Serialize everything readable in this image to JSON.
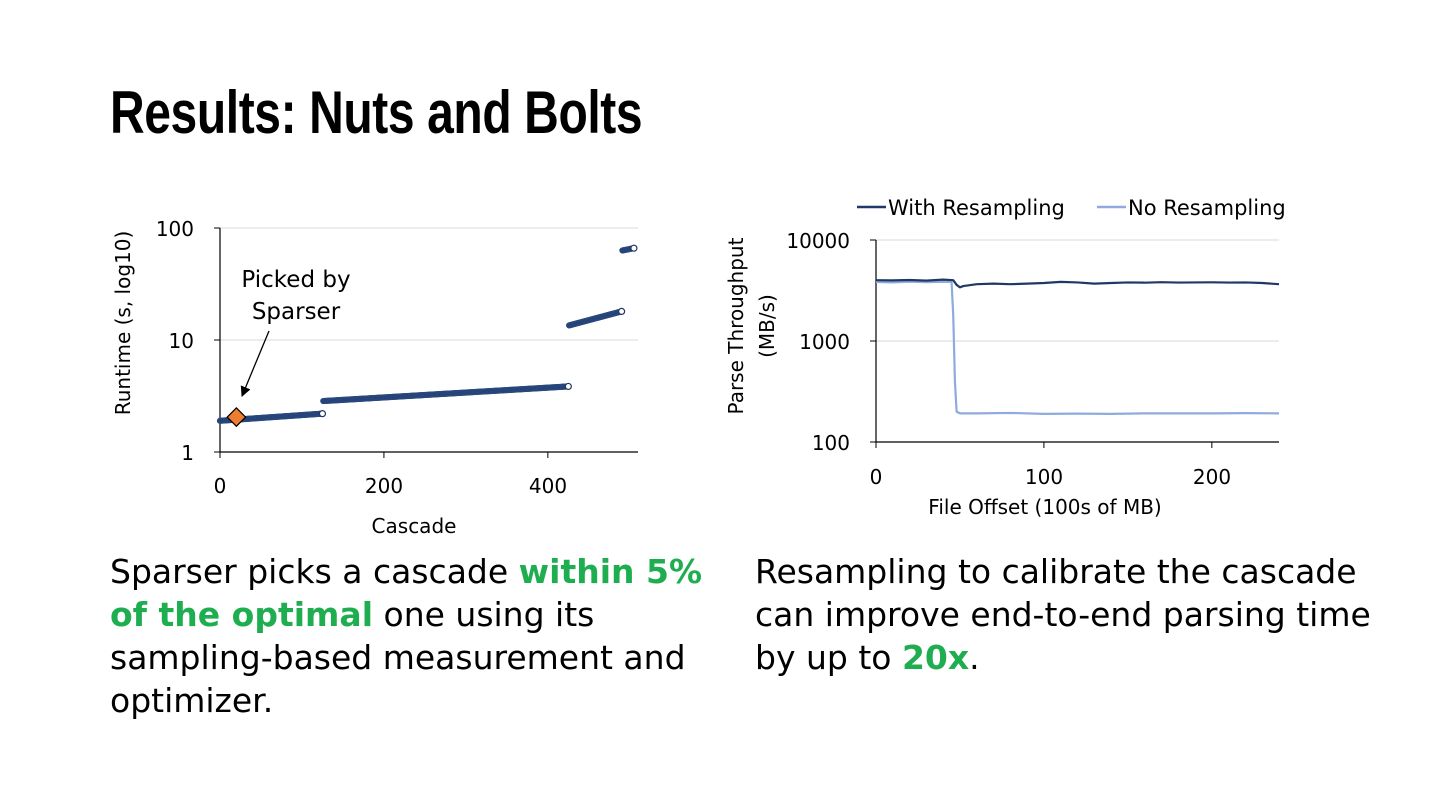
{
  "title": "Results: Nuts and Bolts",
  "caption_left": {
    "before": "Sparser picks a cascade ",
    "highlight": "within 5% of the optimal",
    "after": " one using its sampling-based measurement and optimizer."
  },
  "caption_right": {
    "before": "Resampling to calibrate the cascade can improve end-to-end parsing time by up to ",
    "highlight": "20x",
    "after": "."
  },
  "colors": {
    "highlight": "#1fae4f",
    "series_dark": "#1f3864",
    "series_light": "#8faadc",
    "marker_orange": "#ed7d31",
    "gridline": "#d9d9d9"
  },
  "chart_data": [
    {
      "type": "scatter",
      "xlabel": "Cascade",
      "ylabel": "Runtime (s, log10)",
      "x_ticks": [
        "0",
        "200",
        "400"
      ],
      "y_ticks": [
        "1",
        "10",
        "100"
      ],
      "xlim": [
        0,
        510
      ],
      "ylim": [
        1,
        100
      ],
      "y_scale": "log",
      "grid": true,
      "segments": [
        {
          "x_start": 0,
          "x_end": 125,
          "y_start": 1.9,
          "y_end": 2.2
        },
        {
          "x_start": 126,
          "x_end": 425,
          "y_start": 2.85,
          "y_end": 3.85
        },
        {
          "x_start": 426,
          "x_end": 490,
          "y_start": 13.5,
          "y_end": 18.0
        },
        {
          "x_start": 491,
          "x_end": 505,
          "y_start": 63.0,
          "y_end": 66.0
        }
      ],
      "highlighted_point": {
        "x": 20,
        "y": 2.05
      },
      "annotation": {
        "lines": [
          "Picked by",
          "Sparser"
        ]
      }
    },
    {
      "type": "line",
      "xlabel": "File Offset (100s of MB)",
      "ylabel_lines": [
        "Parse Throughput",
        "(MB/s)"
      ],
      "x_ticks": [
        "0",
        "100",
        "200"
      ],
      "y_ticks": [
        "100",
        "1000",
        "10000"
      ],
      "xlim": [
        0,
        240
      ],
      "ylim": [
        100,
        10000
      ],
      "y_scale": "log",
      "grid": true,
      "legend": "top",
      "series": [
        {
          "name": "With Resampling",
          "color": "#1f3864",
          "x": [
            0,
            10,
            20,
            30,
            40,
            46,
            48,
            50,
            52,
            60,
            70,
            80,
            90,
            100,
            110,
            120,
            130,
            140,
            150,
            160,
            170,
            180,
            190,
            200,
            210,
            220,
            230,
            240
          ],
          "y": [
            4000,
            3980,
            4020,
            3960,
            4050,
            4000,
            3600,
            3400,
            3500,
            3650,
            3700,
            3650,
            3700,
            3750,
            3850,
            3800,
            3700,
            3750,
            3800,
            3780,
            3820,
            3790,
            3800,
            3810,
            3790,
            3800,
            3750,
            3650
          ]
        },
        {
          "name": "No Resampling",
          "color": "#8faadc",
          "x": [
            0,
            10,
            20,
            30,
            40,
            45,
            46,
            47,
            48,
            50,
            60,
            80,
            100,
            120,
            140,
            160,
            180,
            200,
            220,
            240
          ],
          "y": [
            3850,
            3800,
            3870,
            3820,
            3860,
            3850,
            1800,
            400,
            200,
            192,
            192,
            194,
            190,
            191,
            190,
            192,
            192,
            192,
            193,
            192
          ]
        }
      ]
    }
  ]
}
